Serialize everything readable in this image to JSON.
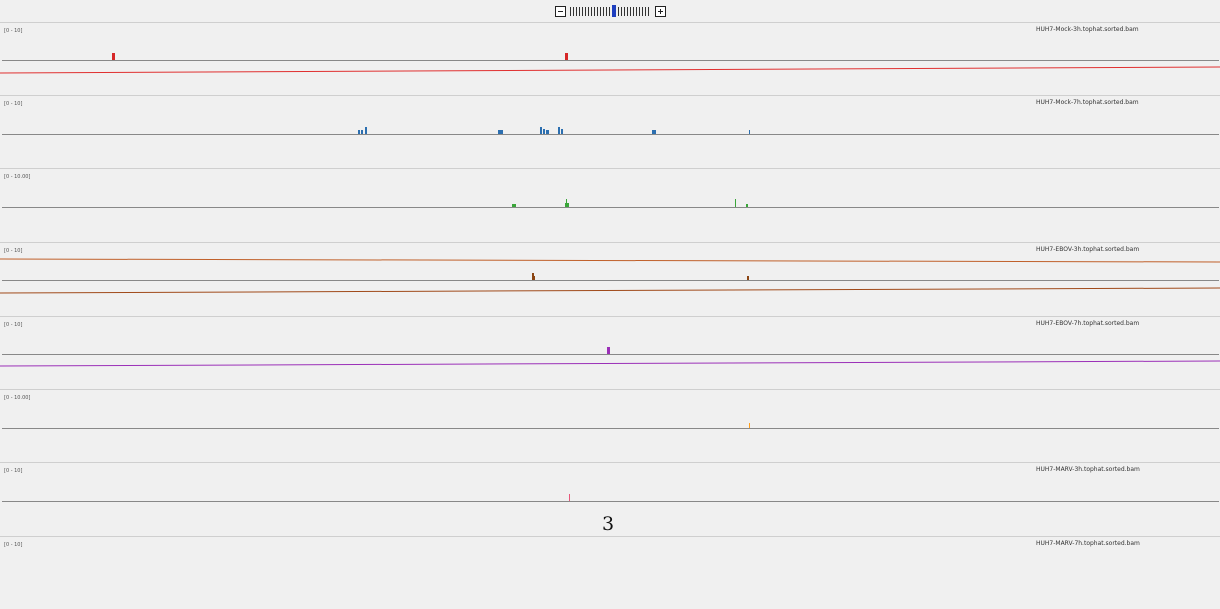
{
  "zoom": {
    "minus_label": "−",
    "plus_label": "+",
    "tick_count": 26,
    "active_tick": 14,
    "active_color": "#1f3fbf"
  },
  "tracks": [
    {
      "name": "HUH7-Mock-3h.tophat.sorted.bam",
      "range": "[0 - 10]",
      "color": "#d62728"
    },
    {
      "name": "HUH7-Mock-7h.tophat.sorted.bam",
      "range": "[0 - 10]",
      "color": "#2c6fb0"
    },
    {
      "name": "",
      "range": "[0 - 10.00]",
      "color": "#3aa63a"
    },
    {
      "name": "HUH7-EBOV-3h.tophat.sorted.bam",
      "range": "[0 - 10]",
      "color": "#8b4513"
    },
    {
      "name": "HUH7-EBOV-7h.tophat.sorted.bam",
      "range": "[0 - 10]",
      "color": "#9b30b8"
    },
    {
      "name": "",
      "range": "[0 - 10.00]",
      "color": "#ff9f1c"
    },
    {
      "name": "HUH7-MARV-3h.tophat.sorted.bam",
      "range": "[0 - 10]",
      "color": "#e8577a"
    },
    {
      "name": "HUH7-MARV-7h.tophat.sorted.bam",
      "range": "[0 - 10]",
      "color": "#888888"
    }
  ],
  "page_number": "3"
}
